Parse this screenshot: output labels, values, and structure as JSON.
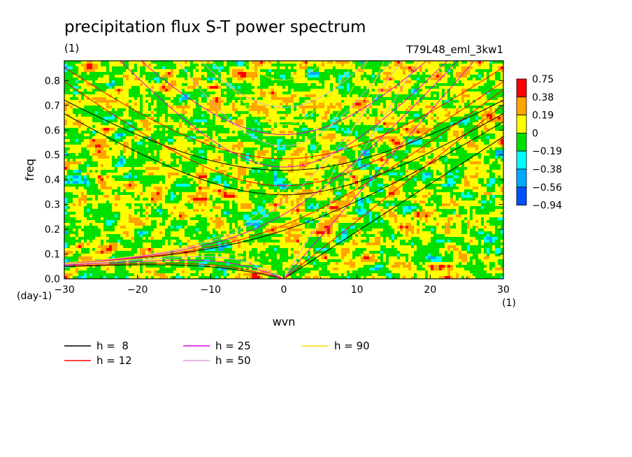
{
  "chart_data": {
    "type": "heatmap",
    "title": "precipitation flux S-T power spectrum",
    "subtitle_left": "(1)",
    "subtitle_right": "T79L48_eml_3kw1",
    "xlabel": "wvn",
    "ylabel": "freq",
    "x_unit": "(1)",
    "y_unit": "(day-1)",
    "xlim": [
      -30,
      30
    ],
    "ylim": [
      0,
      0.88
    ],
    "x_ticks": [
      -30,
      -20,
      -10,
      0,
      10,
      20,
      30
    ],
    "x_tick_labels": [
      "−30",
      "−20",
      "−10",
      "0",
      "10",
      "20",
      "30"
    ],
    "y_ticks": [
      0,
      0.1,
      0.2,
      0.3,
      0.4,
      0.5,
      0.6,
      0.7,
      0.8
    ],
    "y_tick_labels": [
      "0.0",
      "0.1",
      "0.2",
      "0.3",
      "0.4",
      "0.5",
      "0.6",
      "0.7",
      "0.8"
    ],
    "colorbar": {
      "levels": [
        "0.75",
        "0.38",
        "0.19",
        "0",
        "−0.19",
        "−0.38",
        "−0.56",
        "−0.94"
      ],
      "colors": [
        "#ff0000",
        "#ffa500",
        "#ffff00",
        "#00e000",
        "#00ffff",
        "#00aaff",
        "#0050ff"
      ]
    },
    "dispersion_curves": [
      {
        "name": "h =  8",
        "h": 8,
        "color": "#000000"
      },
      {
        "name": "h = 12",
        "h": 12,
        "color": "#ff0000"
      },
      {
        "name": "h = 25",
        "h": 25,
        "color": "#e000e0"
      },
      {
        "name": "h = 50",
        "h": 50,
        "color": "#e0a0e0"
      },
      {
        "name": "h = 90",
        "h": 90,
        "color": "#ffd700"
      }
    ]
  }
}
